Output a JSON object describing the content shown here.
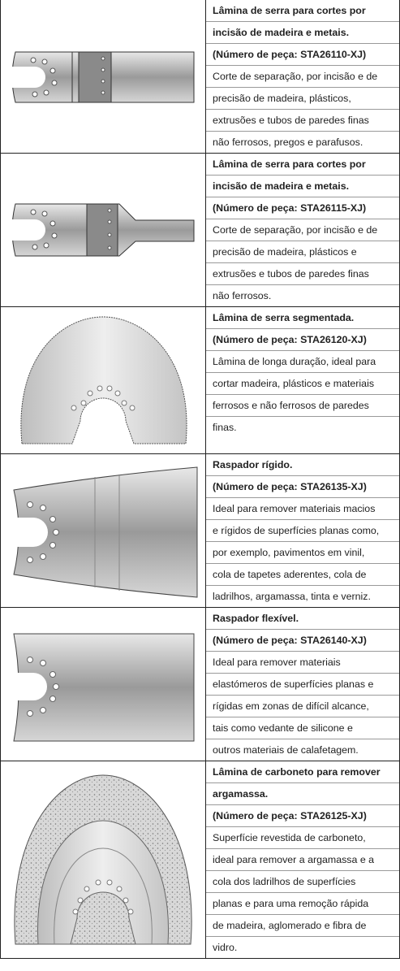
{
  "rows": [
    {
      "title": [
        "Lâmina de serra para cortes por",
        "incisão de madeira e metais."
      ],
      "part": "(Número de peça: STA26110-XJ)",
      "description": [
        "Corte de separação, por incisão e de",
        "precisão de madeira, plásticos,",
        "extrusões e tubos de paredes finas",
        "não ferrosos, pregos e parafusos."
      ]
    },
    {
      "title": [
        "Lâmina de serra para cortes por",
        "incisão de madeira e metais."
      ],
      "part": "(Número de peça: STA26115-XJ)",
      "description": [
        "Corte de separação, por incisão e de",
        "precisão de madeira, plásticos e",
        "extrusões e tubos de paredes finas",
        "não ferrosos."
      ]
    },
    {
      "title": [
        "Lâmina de serra segmentada."
      ],
      "part": "(Número de peça: STA26120-XJ)",
      "description": [
        "Lâmina de longa duração, ideal para",
        "cortar madeira, plásticos e materiais",
        "ferrosos e não ferrosos de paredes",
        "finas."
      ]
    },
    {
      "title": [
        "Raspador rígido."
      ],
      "part": "(Número de peça: STA26135-XJ)",
      "description": [
        "Ideal para remover materiais macios",
        "e rígidos de superfícies planas como,",
        "por exemplo, pavimentos em vinil,",
        "cola de tapetes aderentes, cola de",
        "ladrilhos, argamassa, tinta e verniz."
      ]
    },
    {
      "title": [
        "Raspador flexível."
      ],
      "part": "(Número de peça: STA26140-XJ)",
      "description": [
        "Ideal para remover materiais",
        "elastómeros de superfícies planas e",
        "rígidas em zonas de difícil alcance,",
        "tais como vedante de silicone e",
        "outros materiais de calafetagem."
      ]
    },
    {
      "title": [
        "Lâmina de carboneto para remover",
        "argamassa."
      ],
      "part": "(Número de peça: STA26125-XJ)",
      "description": [
        "Superfície revestida de carboneto,",
        "ideal para remover a argamassa e a",
        "cola dos ladrilhos de superfícies",
        "planas e para uma remoção rápida",
        "de madeira, aglomerado e fibra de",
        "vidro."
      ]
    }
  ]
}
